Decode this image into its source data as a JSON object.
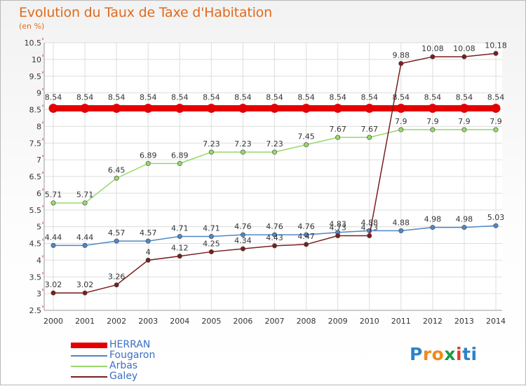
{
  "header": {
    "title": "Evolution du Taux de Taxe d'Habitation",
    "unit": "(en %)"
  },
  "legend": [
    "HERRAN",
    "Fougaron",
    "Arbas",
    "Galey"
  ],
  "logo": {
    "text": "Proxiti",
    "letters": [
      "P",
      "r",
      "o",
      "x",
      "i",
      "t",
      "i"
    ],
    "colors": [
      "#2e83c6",
      "#f08a1c",
      "#f08a1c",
      "#1a9a4a",
      "#e83a2a",
      "#2e83c6",
      "#2e83c6"
    ]
  },
  "colors": {
    "title": "#e06a1c",
    "legend_text": "#3a6fc4"
  },
  "chart_data": {
    "type": "line",
    "x": [
      2000,
      2001,
      2002,
      2003,
      2004,
      2005,
      2006,
      2007,
      2008,
      2009,
      2010,
      2011,
      2012,
      2013,
      2014
    ],
    "ylim": [
      2.5,
      10.5
    ],
    "yticks": [
      2.5,
      3,
      3.5,
      4,
      4.5,
      5,
      5.5,
      6,
      6.5,
      7,
      7.5,
      8,
      8.5,
      9,
      9.5,
      10,
      10.5
    ],
    "grid": true,
    "legend_position": "bottom-left",
    "series": [
      {
        "name": "HERRAN",
        "color": "#e40000",
        "width": 9,
        "values": [
          8.54,
          8.54,
          8.54,
          8.54,
          8.54,
          8.54,
          8.54,
          8.54,
          8.54,
          8.54,
          8.54,
          8.54,
          8.54,
          8.54,
          8.54
        ],
        "labels": [
          "8.54",
          "8.54",
          "8.54",
          "8.54",
          "8.54",
          "8.54",
          "8.54",
          "8.54",
          "8.54",
          "8.54",
          "8.54",
          "8.54",
          "8.54",
          "8.54",
          "8.54"
        ]
      },
      {
        "name": "Fougaron",
        "color": "#4f87c4",
        "width": 1.5,
        "values": [
          4.44,
          4.44,
          4.57,
          4.57,
          4.71,
          4.71,
          4.76,
          4.76,
          4.76,
          4.83,
          4.88,
          4.88,
          4.98,
          4.98,
          5.03
        ],
        "labels": [
          "4.44",
          "4.44",
          "4.57",
          "4.57",
          "4.71",
          "4.71",
          "4.76",
          "4.76",
          "4.76",
          "4.83",
          "4.88",
          "4.88",
          "4.98",
          "4.98",
          "5.03"
        ]
      },
      {
        "name": "Arbas",
        "color": "#98d86a",
        "width": 1.5,
        "values": [
          5.71,
          5.71,
          6.45,
          6.89,
          6.89,
          7.23,
          7.23,
          7.23,
          7.45,
          7.67,
          7.67,
          7.9,
          7.9,
          7.9,
          7.9
        ],
        "labels": [
          "5.71",
          "5.71",
          "6.45",
          "6.89",
          "6.89",
          "7.23",
          "7.23",
          "7.23",
          "7.45",
          "7.67",
          "7.67",
          "7.9",
          "7.9",
          "7.9",
          "7.9"
        ]
      },
      {
        "name": "Galey",
        "color": "#7a1e1e",
        "width": 1.5,
        "values": [
          3.02,
          3.02,
          3.26,
          4,
          4.12,
          4.25,
          4.34,
          4.43,
          4.47,
          4.73,
          4.73,
          9.88,
          10.08,
          10.08,
          10.18
        ],
        "labels": [
          "3.02",
          "3.02",
          "3.26",
          "4",
          "4.12",
          "4.25",
          "4.34",
          "4.43",
          "4.47",
          "4.73",
          "4.73",
          "9.88",
          "10.08",
          "10.08",
          "10.18"
        ]
      }
    ]
  }
}
